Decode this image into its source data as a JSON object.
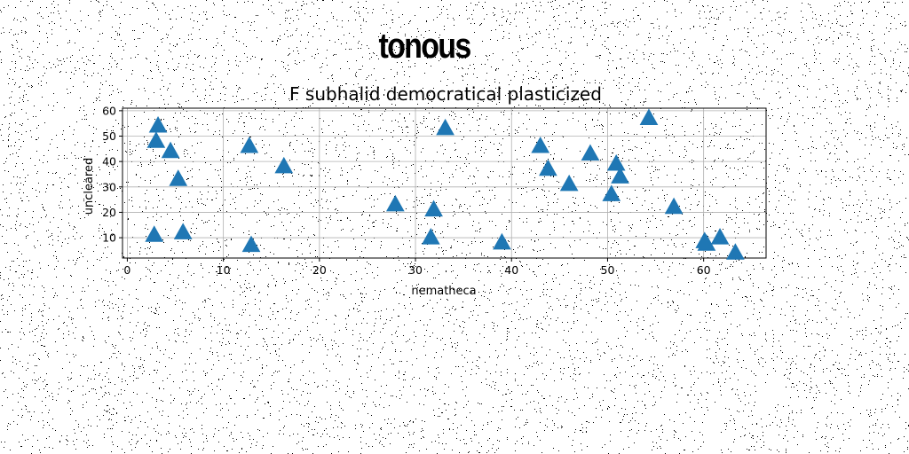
{
  "page": {
    "title": "tonous"
  },
  "chart_data": {
    "type": "scatter",
    "title": "F subhalid democratical plasticized",
    "xlabel": "nematheca",
    "ylabel": "uncleared",
    "xlim": [
      -0.5,
      66.5
    ],
    "ylim": [
      2,
      61
    ],
    "xticks": [
      0,
      10,
      20,
      30,
      40,
      50,
      60
    ],
    "yticks": [
      10,
      20,
      30,
      40,
      50,
      60
    ],
    "grid": true,
    "marker": "triangle-up",
    "color": "#1f77b4",
    "series": [
      {
        "points": [
          [
            2.8,
            11
          ],
          [
            3.0,
            48
          ],
          [
            3.2,
            54
          ],
          [
            4.5,
            44
          ],
          [
            5.3,
            33
          ],
          [
            5.8,
            12
          ],
          [
            12.7,
            46
          ],
          [
            12.9,
            7
          ],
          [
            16.3,
            38
          ],
          [
            27.9,
            23
          ],
          [
            31.6,
            10
          ],
          [
            31.9,
            21
          ],
          [
            33.1,
            53
          ],
          [
            39.0,
            8
          ],
          [
            43.0,
            46
          ],
          [
            43.8,
            37
          ],
          [
            46.0,
            31
          ],
          [
            48.2,
            43
          ],
          [
            50.4,
            27
          ],
          [
            50.9,
            39
          ],
          [
            51.3,
            34
          ],
          [
            54.3,
            57
          ],
          [
            56.9,
            22
          ],
          [
            60.1,
            8.5
          ],
          [
            60.3,
            7.5
          ],
          [
            61.7,
            10
          ],
          [
            63.3,
            4
          ]
        ]
      }
    ]
  }
}
